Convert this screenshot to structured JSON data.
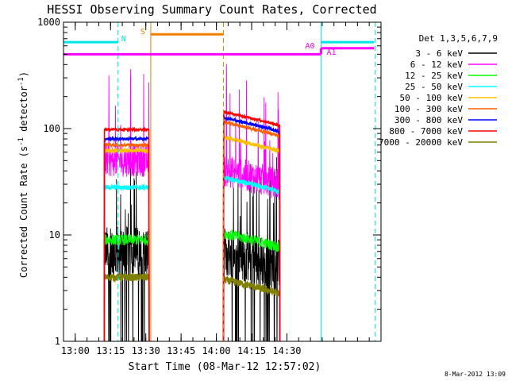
{
  "chart_data": {
    "type": "line",
    "title": "HESSI Observing Summary Count Rates, Corrected",
    "xlabel": "Start Time (08-Mar-12 12:57:02)",
    "ylabel_main": "Corrected Count Rate (s",
    "ylabel_sup1": "-1",
    "ylabel_mid": " detector",
    "ylabel_sup2": "-1",
    "ylabel_end": ")",
    "ylog": true,
    "ylim": [
      1,
      1000
    ],
    "xlim_min": [
      -2,
      133
    ],
    "x_ticks": [
      {
        "label": "13:00",
        "min": 3
      },
      {
        "label": "13:15",
        "min": 18
      },
      {
        "label": "13:30",
        "min": 33
      },
      {
        "label": "13:45",
        "min": 48
      },
      {
        "label": "14:00",
        "min": 63
      },
      {
        "label": "14:15",
        "min": 78
      },
      {
        "label": "14:30",
        "min": 93
      }
    ],
    "y_ticks": [
      {
        "label": "1",
        "v": 1
      },
      {
        "label": "10",
        "v": 10
      },
      {
        "label": "100",
        "v": 100
      },
      {
        "label": "1000",
        "v": 1000
      }
    ],
    "legend_title": "Det 1,3,5,6,7,9",
    "series": [
      {
        "name": "3 - 6 keV",
        "color": "#000000",
        "level": [
          7,
          6
        ],
        "noise": 0.55,
        "spiky": true
      },
      {
        "name": "6 - 12 keV",
        "color": "#ff00ff",
        "level": [
          50,
          35
        ],
        "noise": 0.35,
        "spiky": true
      },
      {
        "name": "12 - 25 keV",
        "color": "#00ff00",
        "level": [
          9,
          9
        ],
        "noise": 0.12,
        "spiky": false
      },
      {
        "name": "25 - 50 keV",
        "color": "#00ffff",
        "level": [
          28,
          30
        ],
        "noise": 0.05,
        "spiky": false
      },
      {
        "name": "50 - 100 keV",
        "color": "#ffc000",
        "level": [
          62,
          72
        ],
        "noise": 0.04,
        "spiky": false
      },
      {
        "name": "100 - 300 keV",
        "color": "#ff6000",
        "level": [
          70,
          100
        ],
        "noise": 0.03,
        "spiky": false
      },
      {
        "name": "300 - 800 keV",
        "color": "#0000ff",
        "level": [
          80,
          110
        ],
        "noise": 0.03,
        "spiky": false
      },
      {
        "name": "800 - 7000 keV",
        "color": "#ff0000",
        "level": [
          98,
          125
        ],
        "noise": 0.02,
        "spiky": false
      },
      {
        "name": "7000 - 20000 keV",
        "color": "#808000",
        "level": [
          4.0,
          3.3
        ],
        "noise": 0.08,
        "spiky": false
      }
    ],
    "intervals": [
      {
        "start": 15.3,
        "end": 34.4
      },
      {
        "start": 66.0,
        "end": 90.0
      }
    ],
    "markers": {
      "night": {
        "label": "N",
        "color": "#00e5e5",
        "bar_y": 650,
        "bars": [
          [
            -2,
            21.2
          ],
          [
            107.5,
            130
          ]
        ],
        "lines": [
          {
            "x": -2,
            "dash": false
          },
          {
            "x": 21.2,
            "dash": true
          },
          {
            "x": 107.5,
            "dash": false
          },
          {
            "x": 130.5,
            "dash": true
          }
        ]
      },
      "saa": {
        "label": "S",
        "color": "#f08000",
        "bar_y": 770,
        "bars": [
          [
            35.1,
            66.0
          ]
        ],
        "lines": [
          {
            "x": 35.1,
            "dash": false
          },
          {
            "x": 66.0,
            "dash": true
          }
        ]
      },
      "attenuator": {
        "labels": [
          "A0",
          "A1"
        ],
        "color": "#ff00ff",
        "y_a0": 500,
        "y_a1": 570,
        "segments": [
          [
            -2,
            107.5
          ],
          [
            107.5,
            130
          ]
        ]
      }
    },
    "footer_date": "8-Mar-2012 13:09"
  }
}
